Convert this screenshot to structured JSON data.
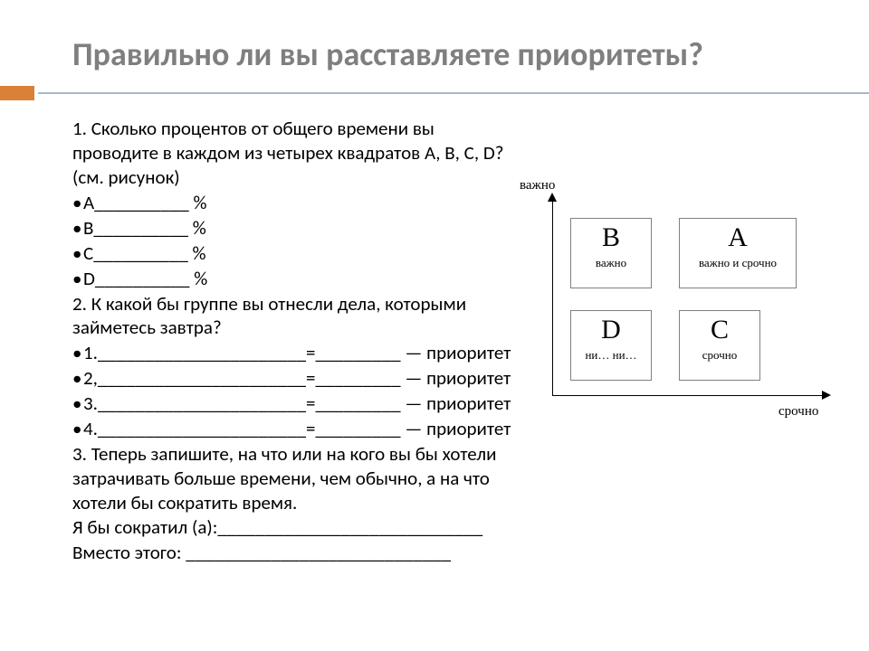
{
  "title": "Правильно ли вы расставляете приоритеты?",
  "q1": "1. Сколько процентов от общего времени вы проводите в каждом из четырех квадратов А, В, С, D? (см. рисунок)",
  "pA": "A__________ %",
  "pB": "B__________ %",
  "pC": "C__________ %",
  "pD": "D__________ %",
  "q2": "2. К какой бы группе вы отнесли дела, которыми займетесь завтра?",
  "l1": "1.______________________=_________ — приоритет",
  "l2": "2,______________________=_________ — приоритет",
  "l3": "3.______________________=_________ — приоритет",
  "l4": "4.______________________=_________ — приоритет",
  "q3": "3. Теперь запишите, на что или на кого вы бы хотели затрачивать больше времени, чем обычно, а на что хотели бы сократить время.",
  "r1": "Я бы сократил (а):____________________________",
  "r2": "Вместо этого: ____________________________",
  "diagram": {
    "y_label": "важно",
    "x_label": "срочно",
    "cells": {
      "B": {
        "letter": "В",
        "sub": "важно"
      },
      "A": {
        "letter": "A",
        "sub": "важно и срочно"
      },
      "D": {
        "letter": "D",
        "sub": "ни… ни…"
      },
      "C": {
        "letter": "C",
        "sub": "срочно"
      }
    },
    "colors": {
      "title": "#7f7f7f",
      "accent_block": "#d98136",
      "divider": "#a6b8ce",
      "cell_border": "#808080",
      "axis": "#000000",
      "background": "#ffffff"
    }
  }
}
